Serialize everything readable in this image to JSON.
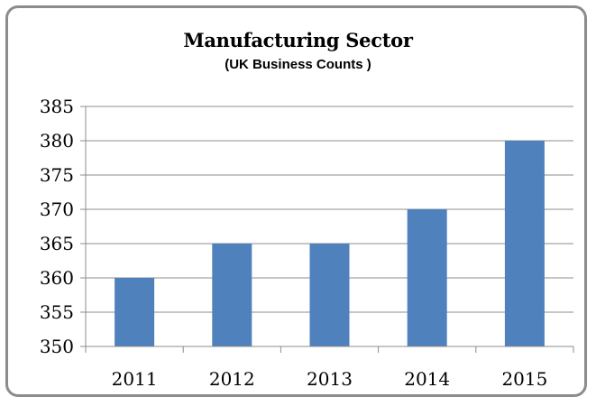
{
  "chart_data": {
    "type": "bar",
    "title": "Manufacturing Sector",
    "subtitle": "(UK Business Counts )",
    "xlabel": "",
    "ylabel": "",
    "categories": [
      "2011",
      "2012",
      "2013",
      "2014",
      "2015"
    ],
    "values": [
      360,
      365,
      365,
      370,
      380
    ],
    "ylim": [
      350,
      385
    ],
    "yticks": [
      350,
      355,
      360,
      365,
      370,
      375,
      380,
      385
    ],
    "grid": true,
    "legend": "none",
    "bar_color": "#4f81bd"
  }
}
